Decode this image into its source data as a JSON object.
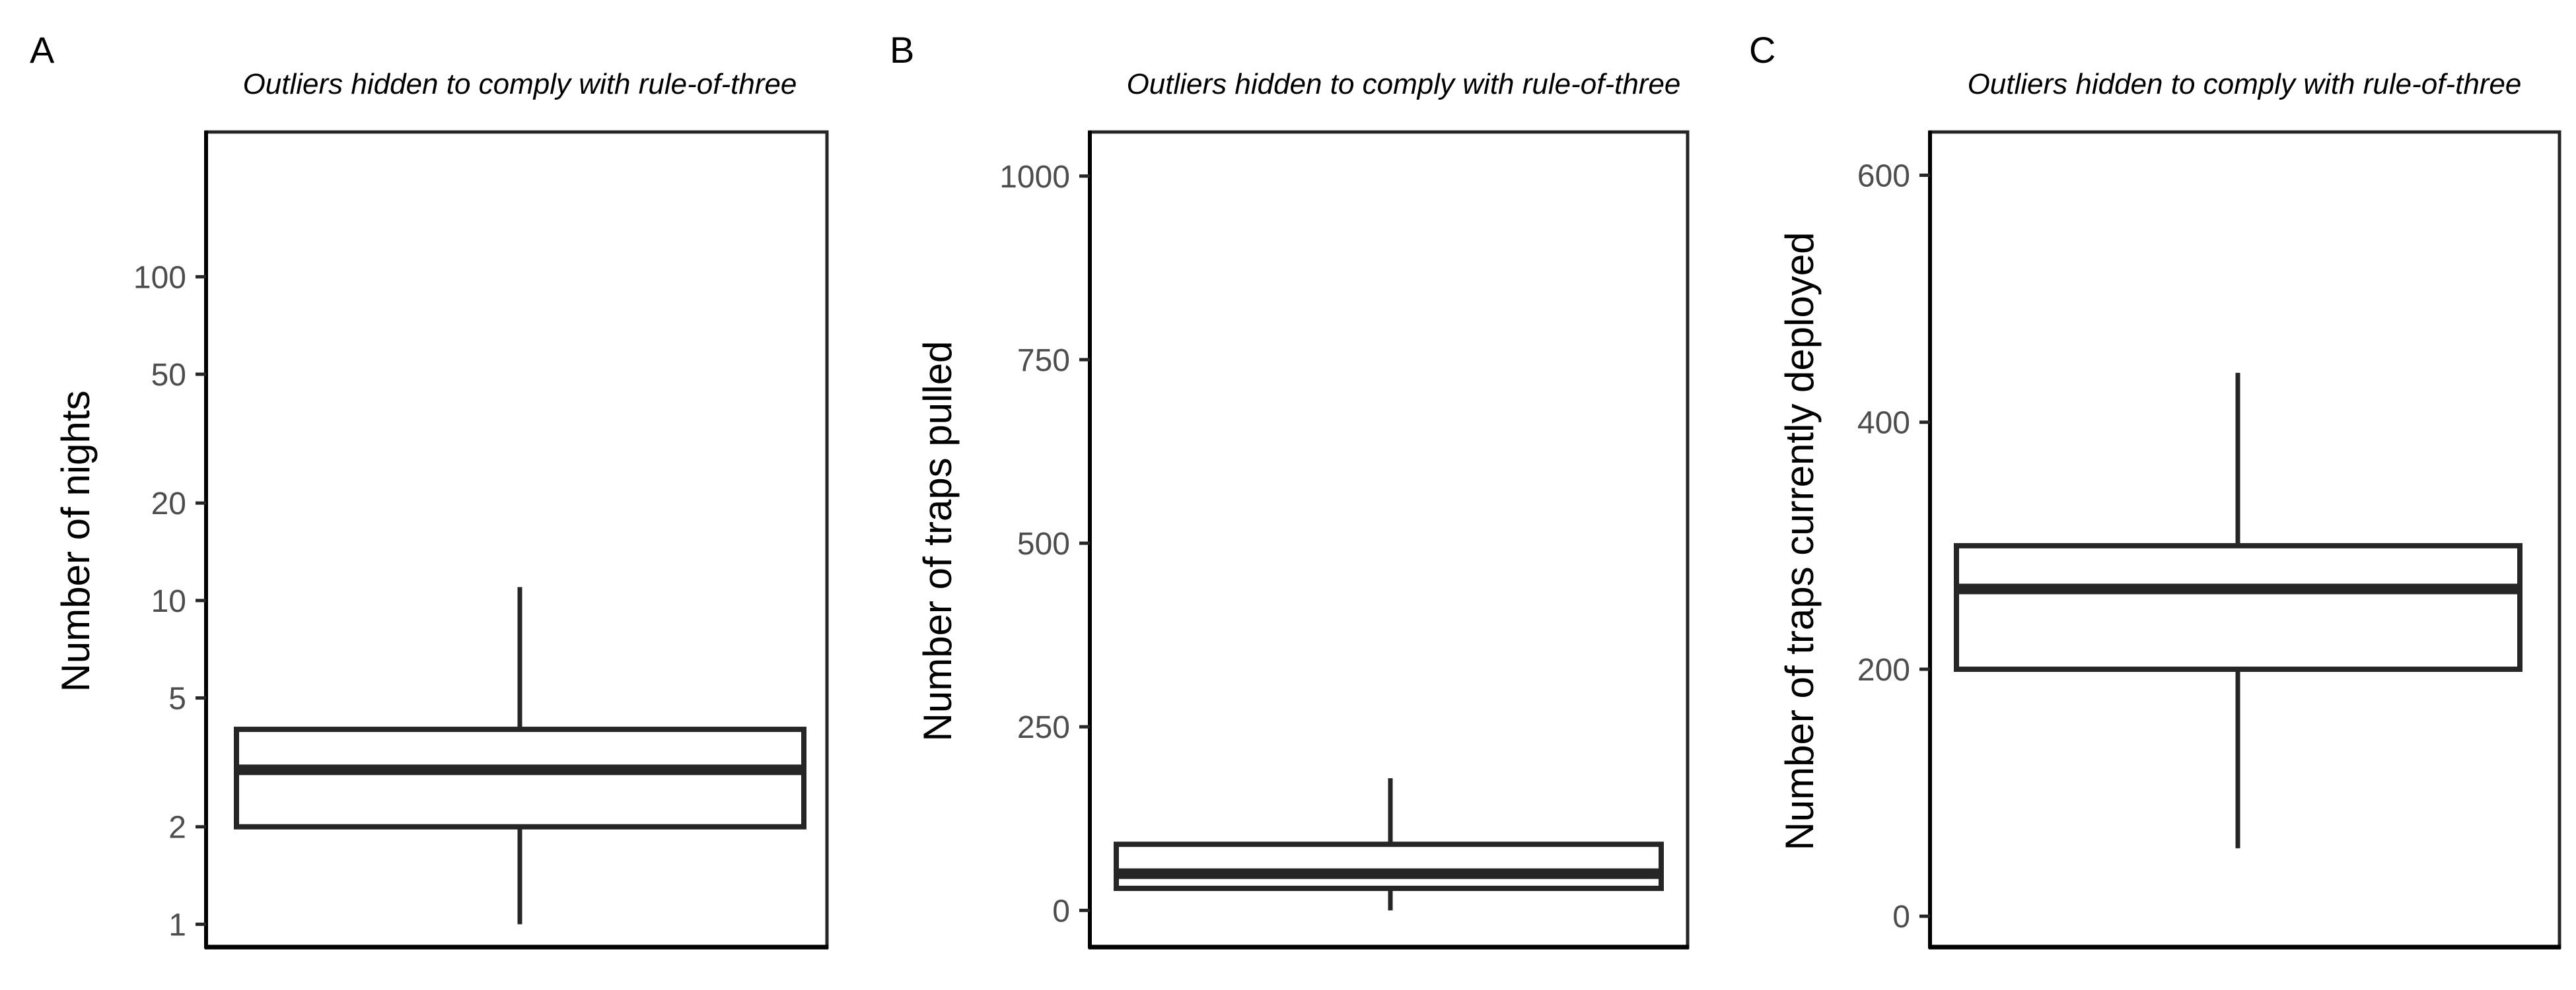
{
  "colors": {
    "line": "#262626",
    "tick_text": "#4d4d4d",
    "background": "#ffffff"
  },
  "chart_data": [
    {
      "type": "boxplot",
      "panel": "A",
      "title": "Outliers hidden to comply with rule-of-three",
      "xlabel": "",
      "ylabel": "Number of nights",
      "scale": "log10",
      "ylim": [
        0.85,
        280
      ],
      "yticks": [
        1,
        2,
        5,
        10,
        20,
        50,
        100
      ],
      "ytick_labels": [
        "1",
        "2",
        "5",
        "10",
        "20",
        "50",
        "100"
      ],
      "grid": false,
      "box": {
        "whisker_low": 1,
        "q1": 2,
        "median": 3,
        "q3": 4,
        "whisker_high": 11
      }
    },
    {
      "type": "boxplot",
      "panel": "B",
      "title": "Outliers hidden to comply with rule-of-three",
      "xlabel": "",
      "ylabel": "Number of traps pulled",
      "scale": "linear",
      "ylim": [
        -50,
        1060
      ],
      "yticks": [
        0,
        250,
        500,
        750,
        1000
      ],
      "ytick_labels": [
        "0",
        "250",
        "500",
        "750",
        "1000"
      ],
      "grid": false,
      "box": {
        "whisker_low": 0,
        "q1": 30,
        "median": 50,
        "q3": 90,
        "whisker_high": 180
      }
    },
    {
      "type": "boxplot",
      "panel": "C",
      "title": "Outliers hidden to comply with rule-of-three",
      "xlabel": "",
      "ylabel": "Number of traps currently deployed",
      "scale": "linear",
      "ylim": [
        -25,
        635
      ],
      "yticks": [
        0,
        200,
        400,
        600
      ],
      "ytick_labels": [
        "0",
        "200",
        "400",
        "600"
      ],
      "grid": false,
      "box": {
        "whisker_low": 55,
        "q1": 200,
        "median": 265,
        "q3": 300,
        "whisker_high": 440
      }
    }
  ]
}
